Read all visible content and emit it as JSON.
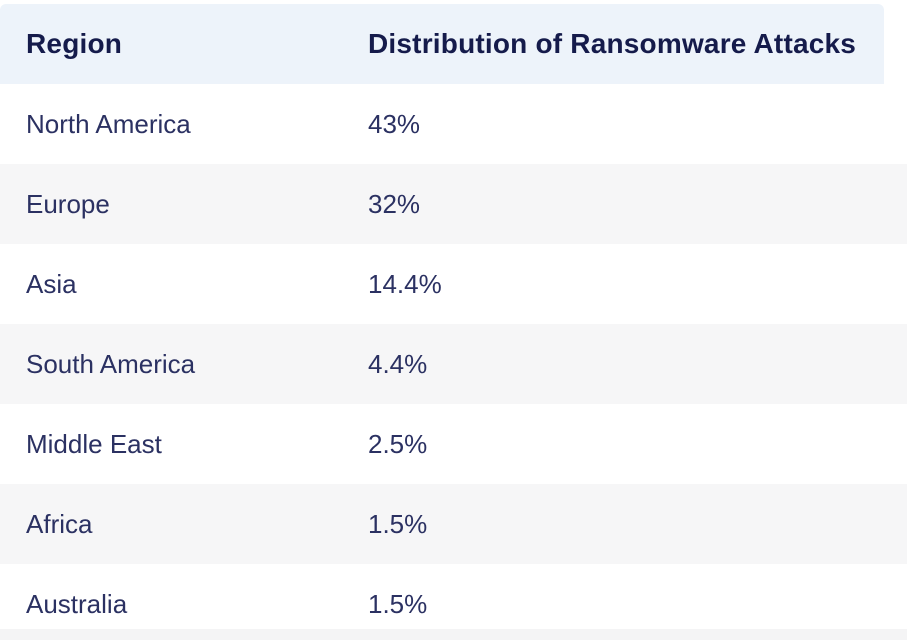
{
  "colors": {
    "header-bg": "#edf3fa",
    "header-text": "#151b4b",
    "body-text": "#2b3162",
    "stripe-bg": "#f6f6f7",
    "strip-bg": "#f4f4f5"
  },
  "table": {
    "columns": [
      "Region",
      "Distribution of Ransomware Attacks"
    ],
    "rows": [
      {
        "region": "North America",
        "value": "43%"
      },
      {
        "region": "Europe",
        "value": "32%"
      },
      {
        "region": "Asia",
        "value": "14.4%"
      },
      {
        "region": "South America",
        "value": "4.4%"
      },
      {
        "region": "Middle East",
        "value": "2.5%"
      },
      {
        "region": "Africa",
        "value": "1.5%"
      },
      {
        "region": "Australia",
        "value": "1.5%"
      }
    ]
  },
  "chart_data": {
    "type": "table",
    "title": "Distribution of Ransomware Attacks",
    "categories": [
      "North America",
      "Europe",
      "Asia",
      "South America",
      "Middle East",
      "Africa",
      "Australia"
    ],
    "values": [
      43,
      32,
      14.4,
      4.4,
      2.5,
      1.5,
      1.5
    ],
    "unit": "%",
    "columns": [
      "Region",
      "Distribution of Ransomware Attacks"
    ],
    "layout": "zebra-striped table, header row light blue, alternating white/gray rows"
  }
}
